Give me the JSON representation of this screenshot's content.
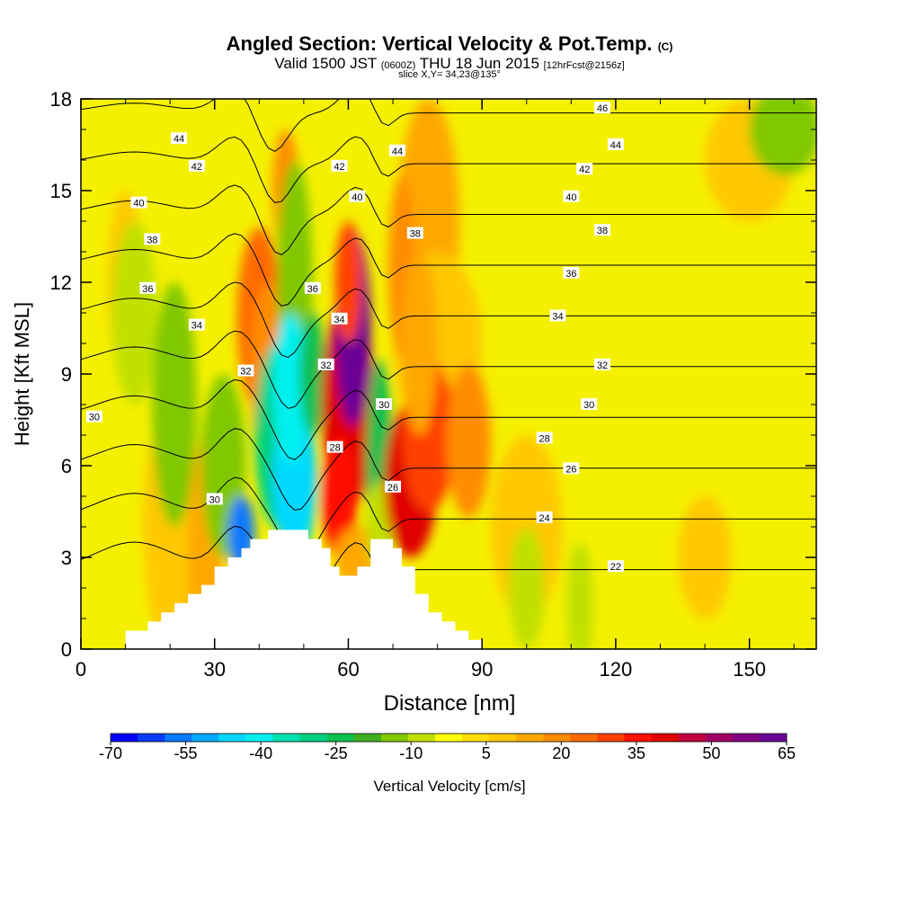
{
  "header": {
    "title": "Angled Section: Vertical Velocity & Pot.Temp.",
    "title_tag": "(C)",
    "valid_a": "Valid 1500 JST",
    "valid_b": "(0600Z)",
    "valid_c": "THU 18 Jun 2015",
    "valid_d": "[12hrFcst@2156z]",
    "slice": "slice X,Y= 34,23@135°"
  },
  "chart_data": {
    "type": "heatmap",
    "title": "Angled Section: Vertical Velocity & Pot.Temp.",
    "xlabel": "Distance [nm]",
    "ylabel": "Height [Kft MSL]",
    "xlim": [
      0,
      165
    ],
    "ylim": [
      0,
      18
    ],
    "x_ticks": [
      "0",
      "30",
      "60",
      "90",
      "120",
      "150"
    ],
    "y_ticks": [
      "0",
      "3",
      "6",
      "9",
      "12",
      "15",
      "18"
    ],
    "colorbar": {
      "label": "Vertical Velocity [cm/s]",
      "tick_labels": [
        "-70",
        "-55",
        "-40",
        "-25",
        "-10",
        "5",
        "20",
        "35",
        "50",
        "65"
      ],
      "colors": [
        "#0000ff",
        "#0a3cff",
        "#0a78ff",
        "#00a8ff",
        "#00d8ff",
        "#00f0f0",
        "#00e0b0",
        "#00d080",
        "#10c050",
        "#40b020",
        "#80c800",
        "#c0e000",
        "#ffff00",
        "#ffe000",
        "#ffc800",
        "#ffa800",
        "#ff8c00",
        "#ff6a00",
        "#ff4000",
        "#ff1000",
        "#e00000",
        "#c0003c",
        "#a00064",
        "#820082",
        "#6a0096"
      ]
    },
    "contours": {
      "name": "Pot.Temp.",
      "levels": [
        22,
        24,
        26,
        28,
        30,
        32,
        34,
        36,
        38,
        40,
        42,
        44,
        46
      ],
      "labels": [
        {
          "text": "46",
          "x": 117,
          "y": 17.7
        },
        {
          "text": "44",
          "x": 22,
          "y": 16.7
        },
        {
          "text": "44",
          "x": 71,
          "y": 16.3
        },
        {
          "text": "44",
          "x": 120,
          "y": 16.5
        },
        {
          "text": "42",
          "x": 26,
          "y": 15.8
        },
        {
          "text": "42",
          "x": 58,
          "y": 15.8
        },
        {
          "text": "42",
          "x": 113,
          "y": 15.7
        },
        {
          "text": "40",
          "x": 13,
          "y": 14.6
        },
        {
          "text": "40",
          "x": 62,
          "y": 14.8
        },
        {
          "text": "40",
          "x": 110,
          "y": 14.8
        },
        {
          "text": "38",
          "x": 16,
          "y": 13.4
        },
        {
          "text": "38",
          "x": 75,
          "y": 13.6
        },
        {
          "text": "38",
          "x": 117,
          "y": 13.7
        },
        {
          "text": "36",
          "x": 15,
          "y": 11.8
        },
        {
          "text": "36",
          "x": 52,
          "y": 11.8
        },
        {
          "text": "36",
          "x": 110,
          "y": 12.3
        },
        {
          "text": "34",
          "x": 26,
          "y": 10.6
        },
        {
          "text": "34",
          "x": 58,
          "y": 10.8
        },
        {
          "text": "34",
          "x": 107,
          "y": 10.9
        },
        {
          "text": "32",
          "x": 37,
          "y": 9.1
        },
        {
          "text": "32",
          "x": 55,
          "y": 9.3
        },
        {
          "text": "32",
          "x": 117,
          "y": 9.3
        },
        {
          "text": "30",
          "x": 3,
          "y": 7.6
        },
        {
          "text": "30",
          "x": 68,
          "y": 8.0
        },
        {
          "text": "30",
          "x": 114,
          "y": 8.0
        },
        {
          "text": "30",
          "x": 30,
          "y": 4.9
        },
        {
          "text": "28",
          "x": 57,
          "y": 6.6
        },
        {
          "text": "28",
          "x": 104,
          "y": 6.9
        },
        {
          "text": "26",
          "x": 70,
          "y": 5.3
        },
        {
          "text": "26",
          "x": 110,
          "y": 5.9
        },
        {
          "text": "24",
          "x": 104,
          "y": 4.3
        },
        {
          "text": "22",
          "x": 120,
          "y": 2.7
        }
      ]
    },
    "features": {
      "updraft_cores": [
        {
          "x": 61,
          "y": 10.5,
          "value": 65
        },
        {
          "x": 73,
          "y": 5.5,
          "value": 45
        },
        {
          "x": 40,
          "y": 10.0,
          "value": 30
        },
        {
          "x": 87,
          "y": 6.8,
          "value": 20
        }
      ],
      "downdraft_cores": [
        {
          "x": 36,
          "y": 3.8,
          "value": -55
        },
        {
          "x": 47,
          "y": 5.5,
          "value": -45
        },
        {
          "x": 67,
          "y": 6.0,
          "value": -25
        }
      ]
    },
    "terrain_profile": [
      [
        0,
        0
      ],
      [
        10,
        0
      ],
      [
        10,
        0.6
      ],
      [
        15,
        0.6
      ],
      [
        15,
        0.9
      ],
      [
        18,
        0.9
      ],
      [
        18,
        1.2
      ],
      [
        21,
        1.2
      ],
      [
        21,
        1.5
      ],
      [
        24,
        1.5
      ],
      [
        24,
        1.8
      ],
      [
        27,
        1.8
      ],
      [
        27,
        2.1
      ],
      [
        30,
        2.1
      ],
      [
        30,
        2.7
      ],
      [
        33,
        2.7
      ],
      [
        33,
        3.0
      ],
      [
        36,
        3.0
      ],
      [
        36,
        3.3
      ],
      [
        38,
        3.3
      ],
      [
        38,
        3.6
      ],
      [
        42,
        3.6
      ],
      [
        42,
        3.9
      ],
      [
        51,
        3.9
      ],
      [
        51,
        3.6
      ],
      [
        54,
        3.6
      ],
      [
        54,
        3.3
      ],
      [
        56,
        3.3
      ],
      [
        56,
        2.7
      ],
      [
        58,
        2.7
      ],
      [
        58,
        2.4
      ],
      [
        62,
        2.4
      ],
      [
        62,
        2.7
      ],
      [
        65,
        2.7
      ],
      [
        65,
        3.6
      ],
      [
        70,
        3.6
      ],
      [
        70,
        3.3
      ],
      [
        72,
        3.3
      ],
      [
        72,
        2.7
      ],
      [
        75,
        2.7
      ],
      [
        75,
        1.8
      ],
      [
        78,
        1.8
      ],
      [
        78,
        1.2
      ],
      [
        81,
        1.2
      ],
      [
        81,
        0.9
      ],
      [
        84,
        0.9
      ],
      [
        84,
        0.6
      ],
      [
        87,
        0.6
      ],
      [
        87,
        0.3
      ],
      [
        90,
        0.3
      ],
      [
        90,
        0
      ],
      [
        165,
        0
      ]
    ]
  }
}
